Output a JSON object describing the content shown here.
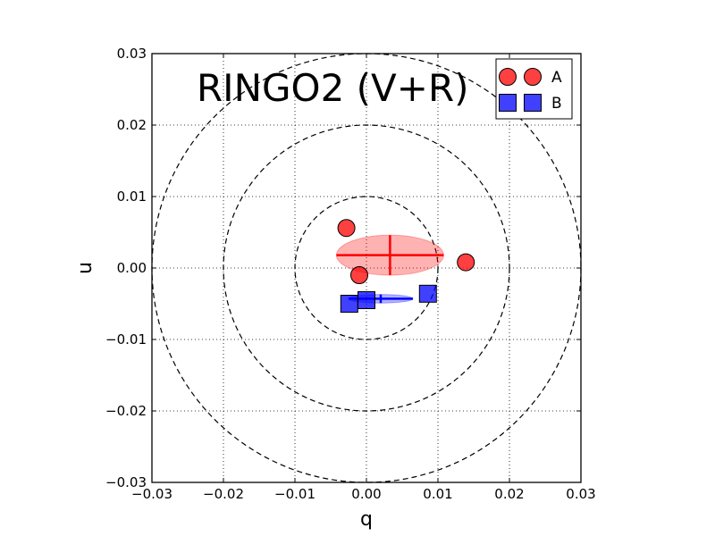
{
  "chart_data": {
    "type": "scatter",
    "title": "RINGO2 (V+R)",
    "xlabel": "q",
    "ylabel": "u",
    "xlim": [
      -0.03,
      0.03
    ],
    "ylim": [
      -0.03,
      0.03
    ],
    "xticks": [
      "−0.03",
      "−0.02",
      "−0.01",
      "0.00",
      "0.01",
      "0.02",
      "0.03"
    ],
    "yticks": [
      "−0.03",
      "−0.02",
      "−0.01",
      "0.00",
      "0.01",
      "0.02",
      "0.03"
    ],
    "grid": true,
    "legend_position": "top-right",
    "reference_circles": [
      0.01,
      0.02,
      0.03
    ],
    "series": [
      {
        "name": "A",
        "marker": "circle",
        "color": "#ff0000",
        "points": [
          {
            "x": -0.0028,
            "y": 0.0056
          },
          {
            "x": -0.001,
            "y": -0.001
          },
          {
            "x": 0.0139,
            "y": 0.0008
          }
        ],
        "mean": {
          "x": 0.0033,
          "y": 0.0018,
          "xerr": 0.0075,
          "yerr": 0.0028
        }
      },
      {
        "name": "B",
        "marker": "square",
        "color": "#0000ff",
        "points": [
          {
            "x": -0.0024,
            "y": -0.005
          },
          {
            "x": 0.0,
            "y": -0.0045
          },
          {
            "x": 0.0086,
            "y": -0.0036
          }
        ],
        "mean": {
          "x": 0.002,
          "y": -0.0043,
          "xerr": 0.0045,
          "yerr": 0.0006
        }
      }
    ]
  }
}
